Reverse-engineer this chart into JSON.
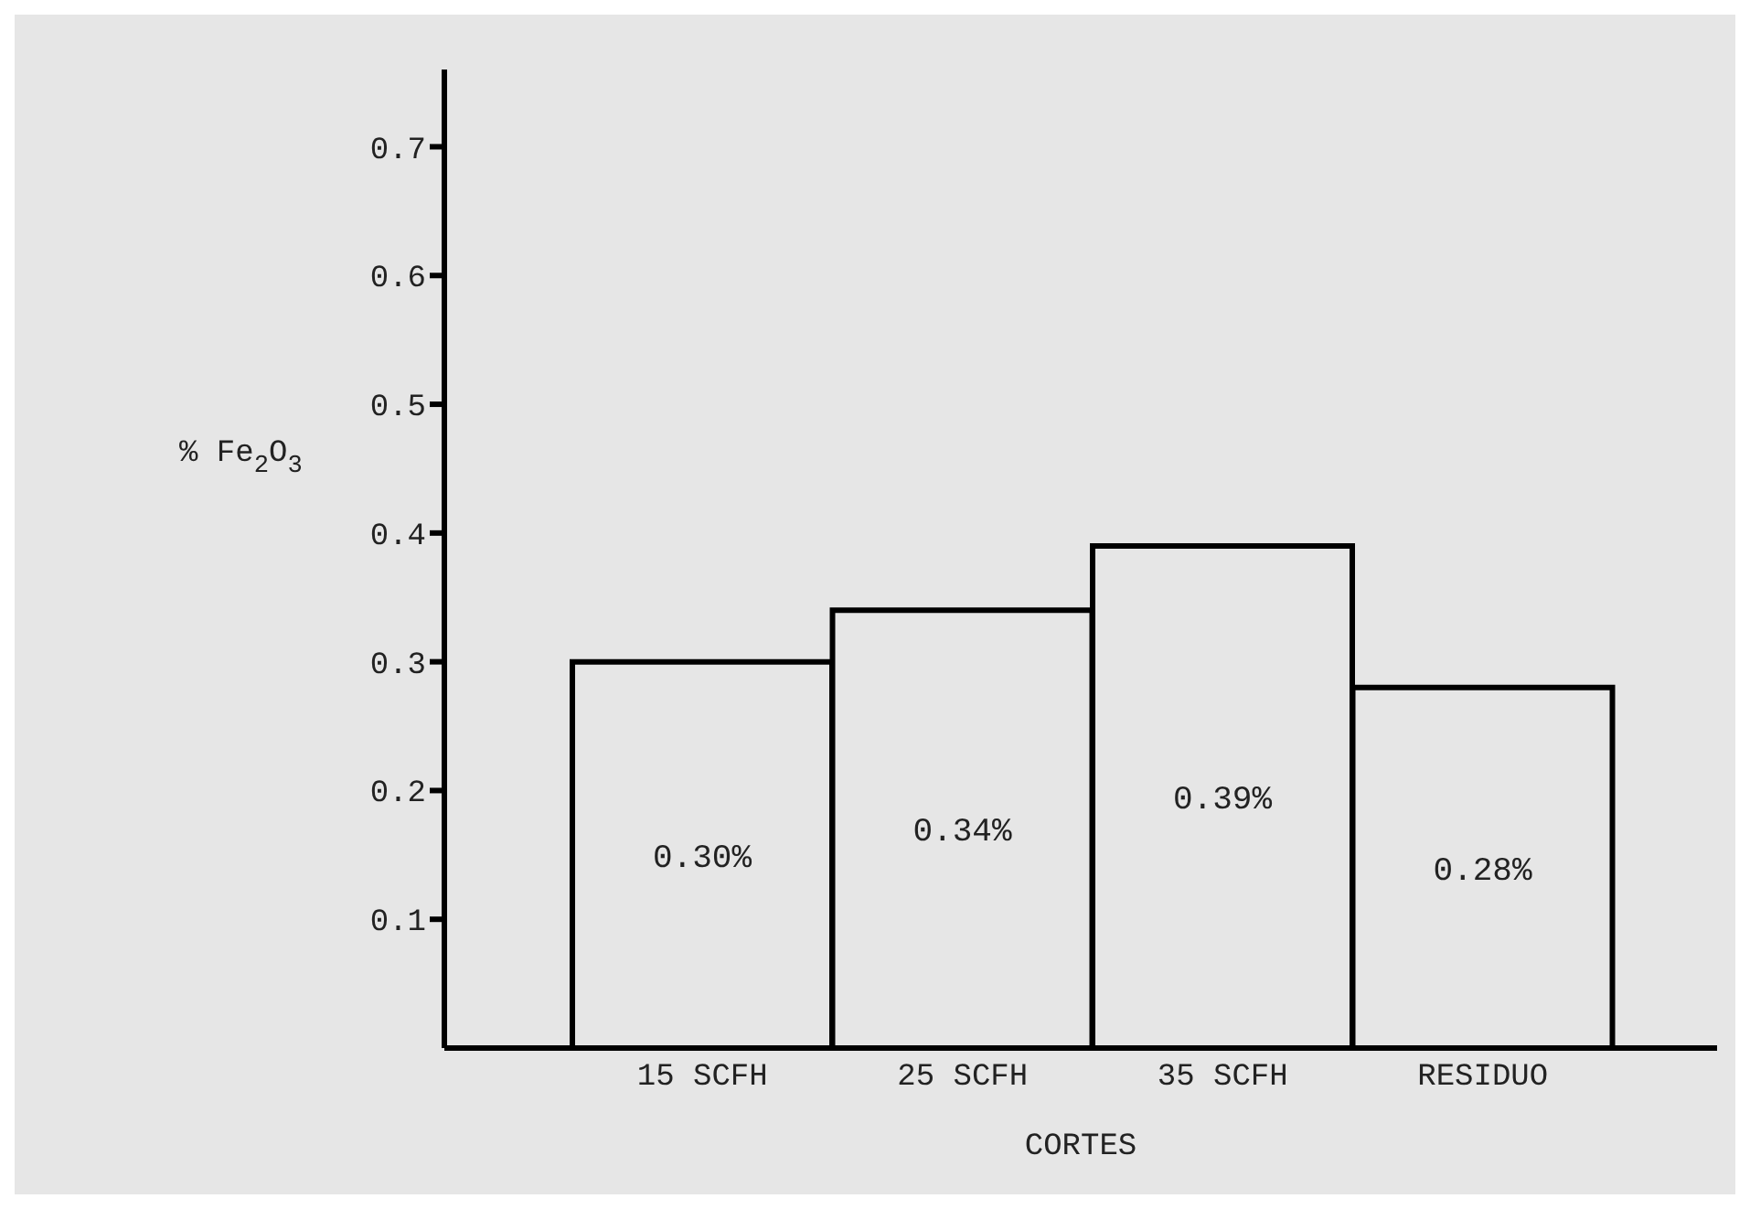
{
  "chart_data": {
    "type": "bar",
    "xlabel": "CORTES",
    "ylabel": "% Fe$_{2}$O$_{3}$",
    "categories": [
      "15 SCFH",
      "25 SCFH",
      "35 SCFH",
      "RESIDUO"
    ],
    "values": [
      0.3,
      0.34,
      0.39,
      0.28
    ],
    "value_labels": [
      "0.30%",
      "0.34%",
      "0.39%",
      "0.28%"
    ],
    "color": "#e6e6e6",
    "ylim": [
      0,
      0.76
    ],
    "yticks": [
      0.1,
      0.2,
      0.3,
      0.4,
      0.5,
      0.6,
      0.7
    ],
    "grid": false,
    "legend": false
  }
}
